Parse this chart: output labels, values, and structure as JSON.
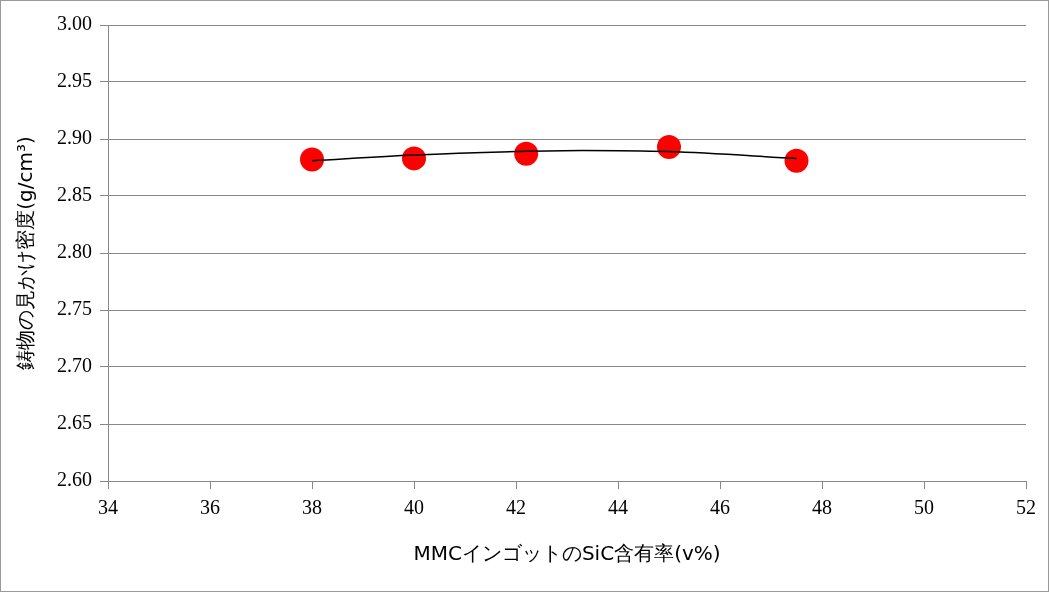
{
  "chart_data": {
    "type": "scatter",
    "xlabel": "MMCインゴットのSiC含有率(v%)",
    "ylabel": "鋳物の見かけ密度(g/cm³)",
    "xlim": [
      34,
      52
    ],
    "xticks": [
      34,
      36,
      38,
      40,
      42,
      44,
      46,
      48,
      50,
      52
    ],
    "ylim": [
      2.6,
      3.0
    ],
    "yticks": [
      {
        "value": 2.6,
        "label": "2.60"
      },
      {
        "value": 2.65,
        "label": "2.65"
      },
      {
        "value": 2.7,
        "label": "2.70"
      },
      {
        "value": 2.75,
        "label": "2.75"
      },
      {
        "value": 2.8,
        "label": "2.80"
      },
      {
        "value": 2.85,
        "label": "2.85"
      },
      {
        "value": 2.9,
        "label": "2.90"
      },
      {
        "value": 2.95,
        "label": "2.95"
      },
      {
        "value": 3.0,
        "label": "3.00"
      }
    ],
    "grid": "y",
    "marker": "circle",
    "series": [
      {
        "type": "scatter",
        "color": "#ff0000",
        "x": [
          38,
          40,
          42.2,
          45,
          47.5
        ],
        "values": [
          2.882,
          2.883,
          2.887,
          2.893,
          2.881
        ]
      },
      {
        "type": "line",
        "color": "#000000",
        "marker": "none",
        "x": [
          38,
          40,
          42,
          43.3,
          45,
          47.5
        ],
        "values": [
          2.881,
          2.886,
          2.889,
          2.89,
          2.889,
          2.883
        ]
      }
    ]
  }
}
